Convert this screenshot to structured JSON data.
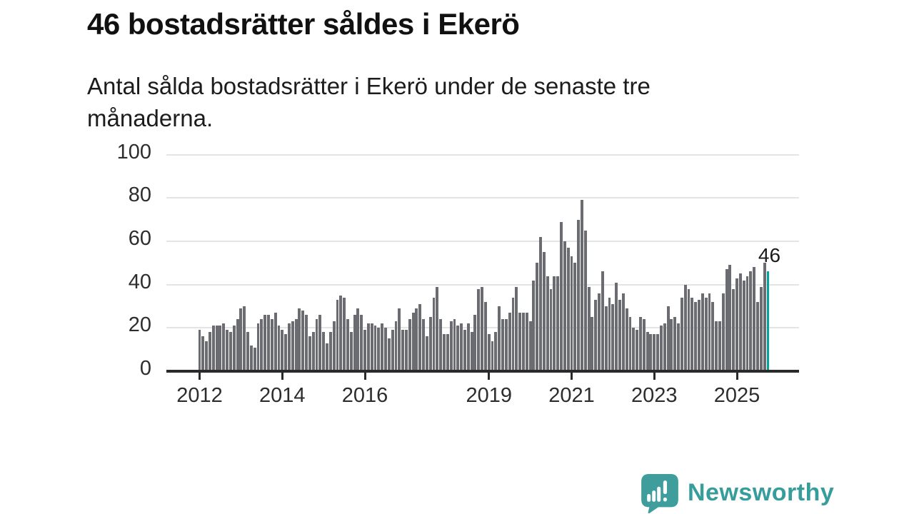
{
  "header": {
    "title": "46 bostadsrätter såldes i Ekerö",
    "subtitle_lines": {
      "0": "Antal sålda bostadsrätter i Ekerö under de senaste tre",
      "1": "månaderna."
    }
  },
  "chart_data": {
    "type": "bar",
    "title": "46 bostadsrätter såldes i Ekerö",
    "subtitle": "Antal sålda bostadsrätter i Ekerö under de senaste tre månaderna.",
    "xlabel": "",
    "ylabel": "",
    "ylim": [
      0,
      100
    ],
    "yticks": [
      0,
      20,
      40,
      60,
      80,
      100
    ],
    "xtick_labels": [
      "2012",
      "2014",
      "2016",
      "2019",
      "2021",
      "2023",
      "2025"
    ],
    "grid": "horizontal",
    "legend": "none",
    "start_month": "2012-01",
    "end_month": "2025-10",
    "bar_color": "#6b6b72",
    "highlight_color": "#00a49c",
    "values_by_year": {
      "2012": [
        19,
        16,
        14,
        18,
        21,
        21,
        21,
        22,
        19,
        18,
        21,
        24
      ],
      "2013": [
        29,
        30,
        18,
        12,
        11,
        22,
        24,
        26,
        26,
        24,
        27,
        21
      ],
      "2014": [
        19,
        17,
        22,
        23,
        24,
        29,
        28,
        26,
        16,
        18,
        24,
        26
      ],
      "2015": [
        18,
        13,
        18,
        23,
        33,
        35,
        34,
        24,
        18,
        26,
        29,
        26
      ],
      "2016": [
        19,
        22,
        22,
        21,
        20,
        22,
        20,
        15,
        19,
        23,
        29,
        19
      ],
      "2017": [
        19,
        24,
        27,
        29,
        31,
        24,
        16,
        25,
        34,
        39,
        24,
        17
      ],
      "2018": [
        17,
        23,
        24,
        21,
        22,
        19,
        22,
        18,
        26,
        38,
        39,
        32
      ],
      "2019": [
        17,
        14,
        18,
        30,
        24,
        24,
        27,
        34,
        39,
        27,
        27,
        27
      ],
      "2020": [
        23,
        42,
        50,
        62,
        55,
        44,
        38,
        44,
        44,
        69,
        60,
        57
      ],
      "2021": [
        53,
        50,
        70,
        79,
        65,
        39,
        25,
        33,
        36,
        46,
        30,
        34
      ],
      "2022": [
        31,
        41,
        33,
        36,
        29,
        25,
        20,
        19,
        25,
        24,
        18,
        17
      ],
      "2023": [
        17,
        17,
        21,
        22,
        30,
        24,
        25,
        22,
        34,
        40,
        38,
        34
      ],
      "2024": [
        32,
        33,
        36,
        34,
        36,
        32,
        23,
        23,
        36,
        47,
        49,
        38
      ],
      "2025": [
        43,
        45,
        42,
        44,
        46,
        48,
        32,
        39,
        50,
        46
      ]
    },
    "highlight": {
      "value": 46,
      "label": "46"
    }
  },
  "footer": {
    "logo_text": "Newsworthy"
  },
  "colors": {
    "axis": "#2a2a2a",
    "gridline": "#e4e4e4",
    "text": "#1c1c1c",
    "bar": "#6b6b72",
    "highlight": "#00a49c",
    "logo": "#379d9b"
  }
}
